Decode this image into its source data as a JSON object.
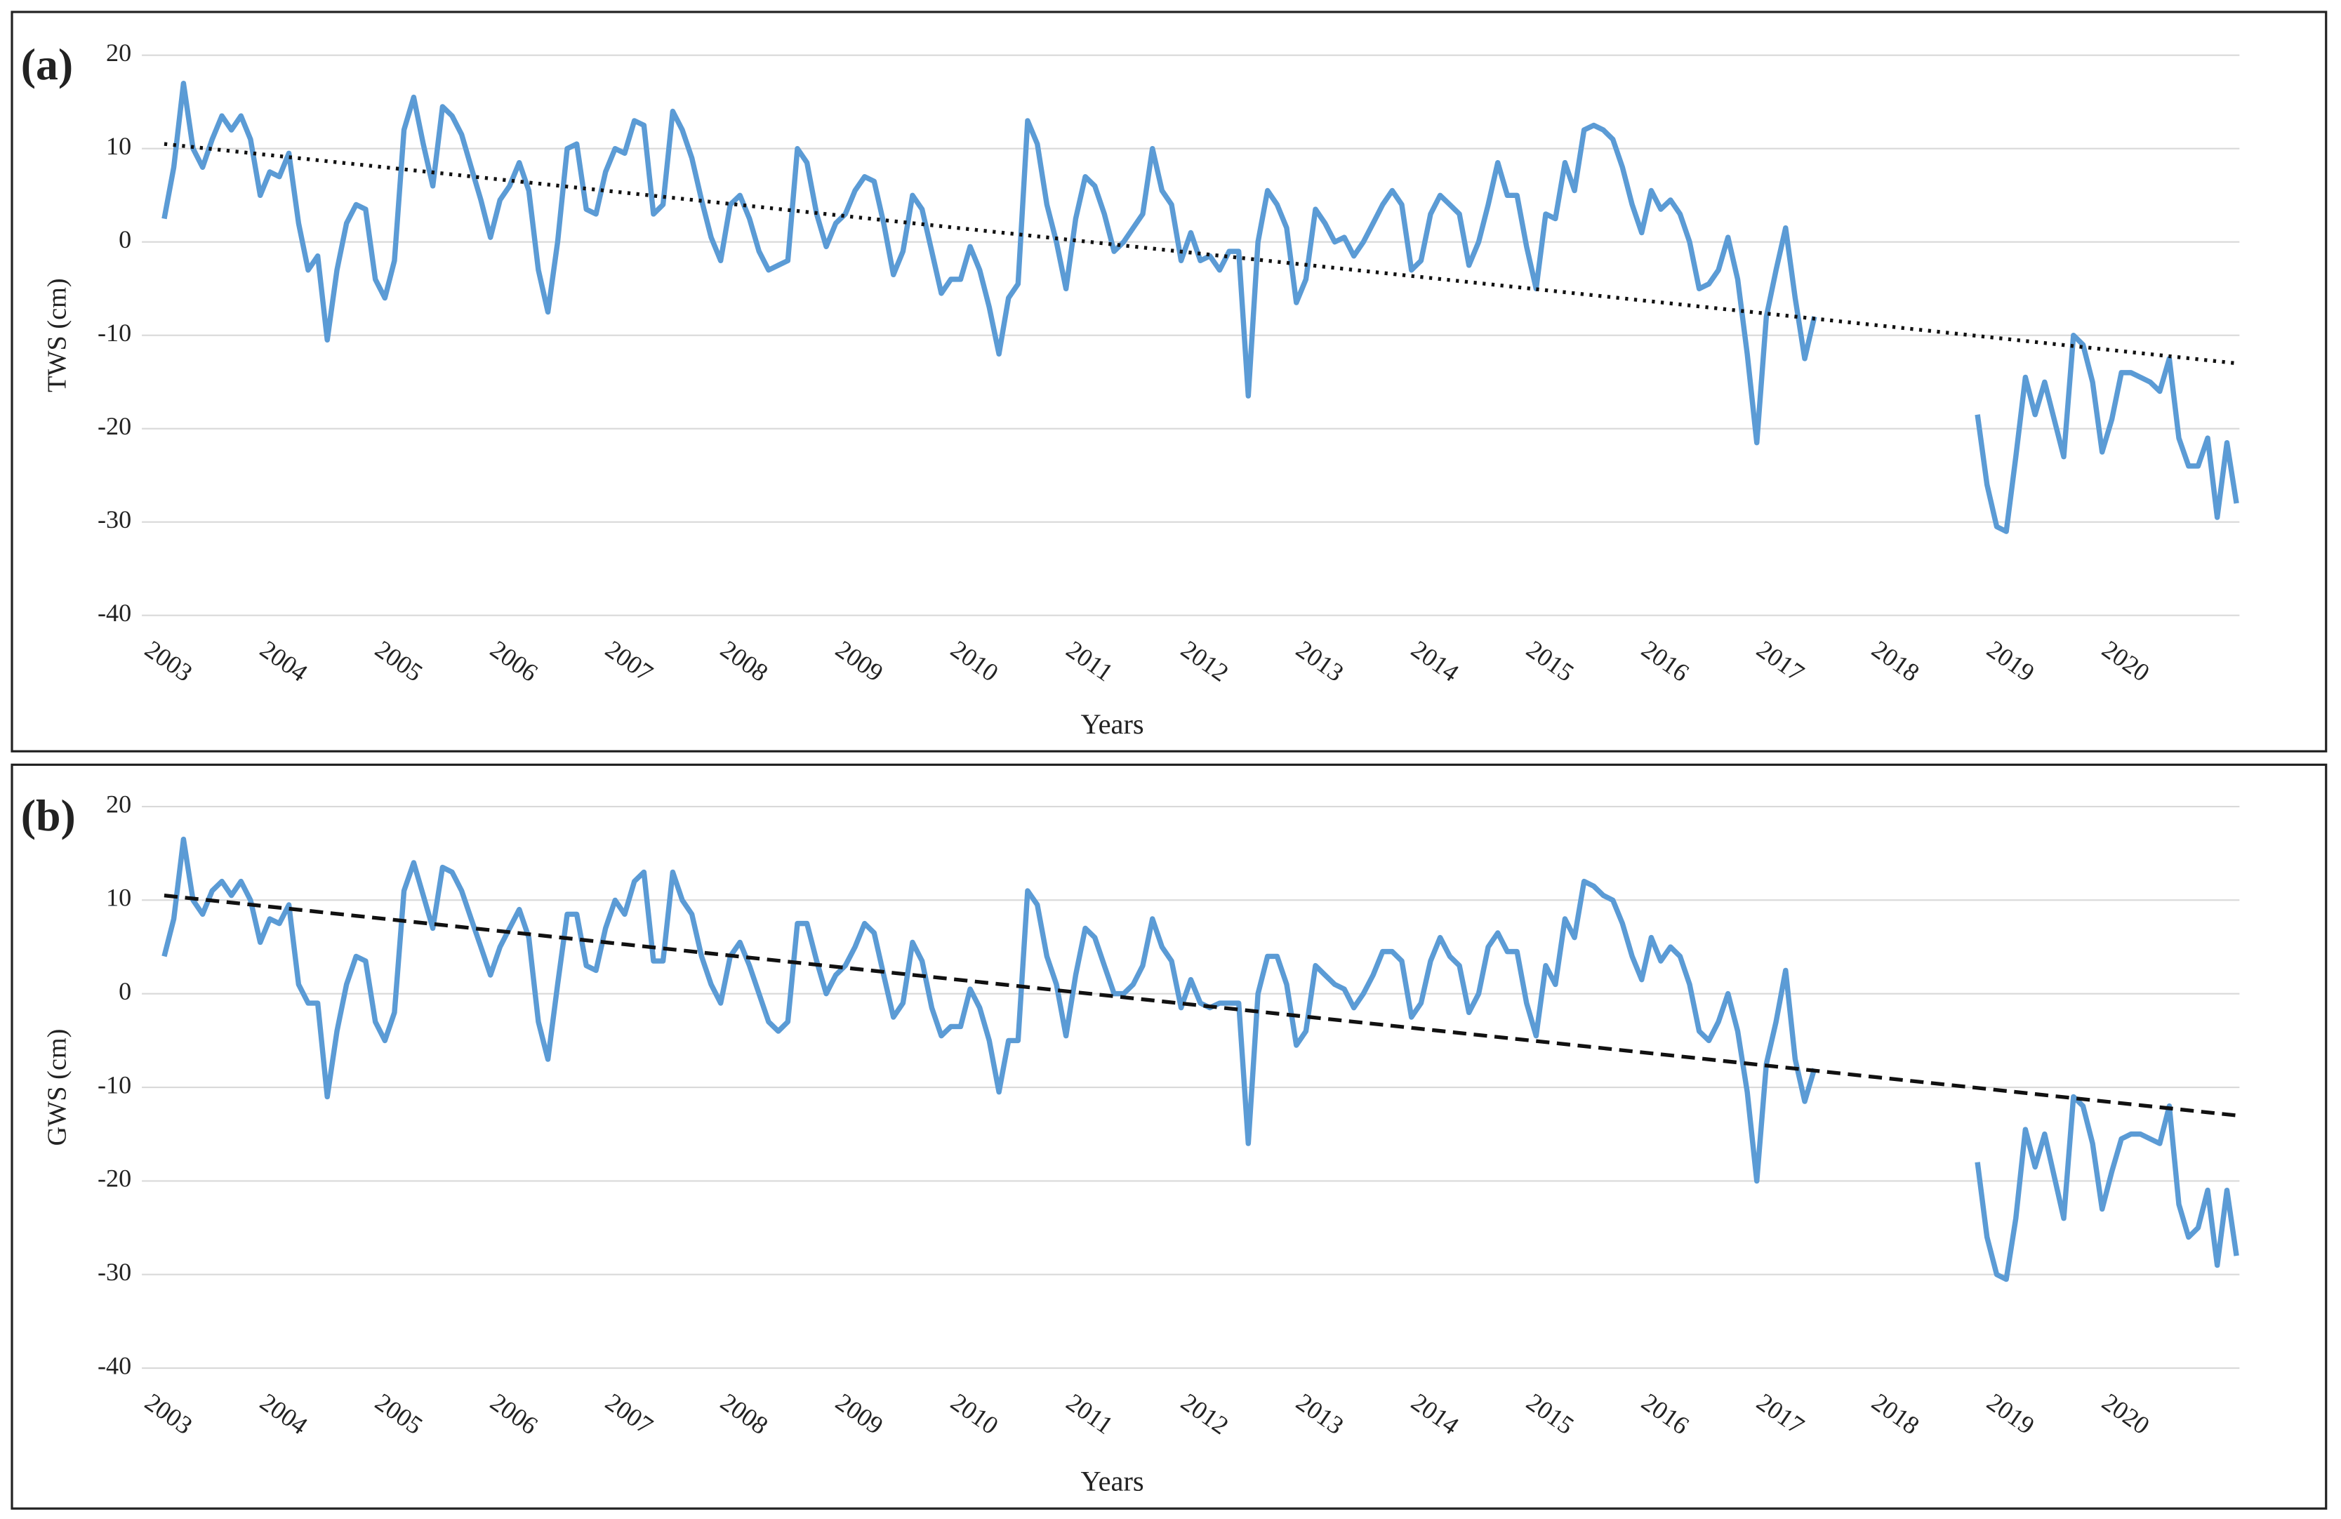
{
  "chart_data": [
    {
      "type": "line",
      "label": "(a)",
      "ylabel": "TWS (cm)",
      "xlabel": "Years",
      "color": "#5b9bd5",
      "grid": true,
      "ylim": [
        -40,
        20
      ],
      "yticks": [
        -40,
        -30,
        -20,
        -10,
        0,
        10,
        20
      ],
      "trend": {
        "start": 10.5,
        "end": -13,
        "style": "dotted"
      },
      "categories": [
        "2003",
        null,
        null,
        null,
        null,
        null,
        null,
        null,
        null,
        null,
        null,
        null,
        "2004",
        null,
        null,
        null,
        null,
        null,
        null,
        null,
        null,
        null,
        null,
        null,
        "2005",
        null,
        null,
        null,
        null,
        null,
        null,
        null,
        null,
        null,
        null,
        null,
        "2006",
        null,
        null,
        null,
        null,
        null,
        null,
        null,
        null,
        null,
        null,
        null,
        "2007",
        null,
        null,
        null,
        null,
        null,
        null,
        null,
        null,
        null,
        null,
        null,
        "2008",
        null,
        null,
        null,
        null,
        null,
        null,
        null,
        null,
        null,
        null,
        null,
        "2009",
        null,
        null,
        null,
        null,
        null,
        null,
        null,
        null,
        null,
        null,
        null,
        "2010",
        null,
        null,
        null,
        null,
        null,
        null,
        null,
        null,
        null,
        null,
        null,
        "2011",
        null,
        null,
        null,
        null,
        null,
        null,
        null,
        null,
        null,
        null,
        null,
        "2012",
        null,
        null,
        null,
        null,
        null,
        null,
        null,
        null,
        null,
        null,
        null,
        "2013",
        null,
        null,
        null,
        null,
        null,
        null,
        null,
        null,
        null,
        null,
        null,
        "2014",
        null,
        null,
        null,
        null,
        null,
        null,
        null,
        null,
        null,
        null,
        null,
        "2015",
        null,
        null,
        null,
        null,
        null,
        null,
        null,
        null,
        null,
        null,
        null,
        "2016",
        null,
        null,
        null,
        null,
        null,
        null,
        null,
        null,
        null,
        null,
        null,
        "2017",
        null,
        null,
        null,
        null,
        null,
        null,
        null,
        null,
        null,
        null,
        null,
        "2018",
        null,
        null,
        null,
        null,
        null,
        null,
        null,
        null,
        null,
        null,
        null,
        "2019",
        null,
        null,
        null,
        null,
        null,
        null,
        null,
        null,
        null,
        null,
        null,
        "2020",
        null,
        null,
        null,
        null,
        null,
        null,
        null,
        null,
        null,
        null,
        null,
        null
      ],
      "values": [
        2.5,
        8,
        17,
        10,
        8,
        11,
        13.5,
        12,
        13.5,
        11,
        5,
        7.5,
        7,
        9.5,
        2,
        -3,
        -1.5,
        -10.5,
        -3,
        2,
        4,
        3.5,
        -4,
        -6,
        -2,
        12,
        15.5,
        10.5,
        6,
        14.5,
        13.5,
        11.5,
        8,
        4.5,
        0.5,
        4.5,
        6,
        8.5,
        5.5,
        -3,
        -7.5,
        0,
        10,
        10.5,
        3.5,
        3,
        7.5,
        10,
        9.5,
        13,
        12.5,
        3,
        4,
        14,
        12,
        9,
        4.5,
        0.5,
        -2,
        4,
        5,
        2.5,
        -1,
        -3,
        -2.5,
        -2,
        10,
        8.5,
        3,
        -0.5,
        2,
        3,
        5.5,
        7,
        6.5,
        2,
        -3.5,
        -1,
        5,
        3.5,
        -1,
        -5.5,
        -4,
        -4,
        -0.5,
        -3,
        -7,
        -12,
        -6,
        -4.5,
        13,
        10.5,
        4,
        0,
        -5,
        2.5,
        7,
        6,
        3,
        -1,
        0,
        1.5,
        3,
        10,
        5.5,
        4,
        -2,
        1,
        -2,
        -1.5,
        -3,
        -1,
        -1,
        -16.5,
        0,
        5.5,
        4,
        1.5,
        -6.5,
        -4,
        3.5,
        2,
        0,
        0.5,
        -1.5,
        0,
        2,
        4,
        5.5,
        4,
        -3,
        -2,
        3,
        5,
        4,
        3,
        -2.5,
        0,
        4,
        8.5,
        5,
        5,
        -0.5,
        -5,
        3,
        2.5,
        8.5,
        5.5,
        12,
        12.5,
        12,
        11,
        8,
        4,
        1,
        5.5,
        3.5,
        4.5,
        3,
        0,
        -5,
        -4.5,
        -3,
        0.5,
        -4,
        -12,
        -21.5,
        -8,
        -3,
        1.5,
        -6,
        -12.5,
        -8,
        null,
        null,
        null,
        null,
        null,
        null,
        null,
        null,
        null,
        null,
        null,
        null,
        null,
        null,
        null,
        null,
        -18.5,
        -26,
        -30.5,
        -31,
        -23,
        -14.5,
        -18.5,
        -15,
        -19,
        -23,
        -10,
        -11,
        -15,
        -22.5,
        -19,
        -14,
        -14,
        -14.5,
        -15,
        -16,
        -12.5,
        -21,
        -24,
        -24,
        -21,
        -29.5,
        -21.5,
        -28
      ]
    },
    {
      "type": "line",
      "label": "(b)",
      "ylabel": "GWS (cm)",
      "xlabel": "Years",
      "color": "#5b9bd5",
      "grid": true,
      "ylim": [
        -40,
        20
      ],
      "yticks": [
        -40,
        -30,
        -20,
        -10,
        0,
        10,
        20
      ],
      "trend": {
        "start": 10.5,
        "end": -13,
        "style": "dashed"
      },
      "categories": [
        "2003",
        null,
        null,
        null,
        null,
        null,
        null,
        null,
        null,
        null,
        null,
        null,
        "2004",
        null,
        null,
        null,
        null,
        null,
        null,
        null,
        null,
        null,
        null,
        null,
        "2005",
        null,
        null,
        null,
        null,
        null,
        null,
        null,
        null,
        null,
        null,
        null,
        "2006",
        null,
        null,
        null,
        null,
        null,
        null,
        null,
        null,
        null,
        null,
        null,
        "2007",
        null,
        null,
        null,
        null,
        null,
        null,
        null,
        null,
        null,
        null,
        null,
        "2008",
        null,
        null,
        null,
        null,
        null,
        null,
        null,
        null,
        null,
        null,
        null,
        "2009",
        null,
        null,
        null,
        null,
        null,
        null,
        null,
        null,
        null,
        null,
        null,
        "2010",
        null,
        null,
        null,
        null,
        null,
        null,
        null,
        null,
        null,
        null,
        null,
        "2011",
        null,
        null,
        null,
        null,
        null,
        null,
        null,
        null,
        null,
        null,
        null,
        "2012",
        null,
        null,
        null,
        null,
        null,
        null,
        null,
        null,
        null,
        null,
        null,
        "2013",
        null,
        null,
        null,
        null,
        null,
        null,
        null,
        null,
        null,
        null,
        null,
        "2014",
        null,
        null,
        null,
        null,
        null,
        null,
        null,
        null,
        null,
        null,
        null,
        "2015",
        null,
        null,
        null,
        null,
        null,
        null,
        null,
        null,
        null,
        null,
        null,
        "2016",
        null,
        null,
        null,
        null,
        null,
        null,
        null,
        null,
        null,
        null,
        null,
        "2017",
        null,
        null,
        null,
        null,
        null,
        null,
        null,
        null,
        null,
        null,
        null,
        "2018",
        null,
        null,
        null,
        null,
        null,
        null,
        null,
        null,
        null,
        null,
        null,
        "2019",
        null,
        null,
        null,
        null,
        null,
        null,
        null,
        null,
        null,
        null,
        null,
        "2020",
        null,
        null,
        null,
        null,
        null,
        null,
        null,
        null,
        null,
        null,
        null,
        null
      ],
      "values": [
        4,
        8,
        16.5,
        10,
        8.5,
        11,
        12,
        10.5,
        12,
        10,
        5.5,
        8,
        7.5,
        9.5,
        1,
        -1,
        -1,
        -11,
        -4,
        1,
        4,
        3.5,
        -3,
        -5,
        -2,
        11,
        14,
        10.5,
        7,
        13.5,
        13,
        11,
        8,
        5,
        2,
        5,
        7,
        9,
        6,
        -3,
        -7,
        1,
        8.5,
        8.5,
        3,
        2.5,
        7,
        10,
        8.5,
        12,
        13,
        3.5,
        3.5,
        13,
        10,
        8.5,
        4,
        1,
        -1,
        4,
        5.5,
        3,
        0,
        -3,
        -4,
        -3,
        7.5,
        7.5,
        3.5,
        0,
        2,
        3,
        5,
        7.5,
        6.5,
        2,
        -2.5,
        -1,
        5.5,
        3.5,
        -1.5,
        -4.5,
        -3.5,
        -3.5,
        0.5,
        -1.5,
        -5,
        -10.5,
        -5,
        -5,
        11,
        9.5,
        4,
        1,
        -4.5,
        2,
        7,
        6,
        3,
        0,
        0,
        1,
        3,
        8,
        5,
        3.5,
        -1.5,
        1.5,
        -1,
        -1.5,
        -1,
        -1,
        -1,
        -16,
        0,
        4,
        4,
        1,
        -5.5,
        -4,
        3,
        2,
        1,
        0.5,
        -1.5,
        0,
        2,
        4.5,
        4.5,
        3.5,
        -2.5,
        -1,
        3.5,
        6,
        4,
        3,
        -2,
        0,
        5,
        6.5,
        4.5,
        4.5,
        -1,
        -4.5,
        3,
        1,
        8,
        6,
        12,
        11.5,
        10.5,
        10,
        7.5,
        4,
        1.5,
        6,
        3.5,
        5,
        4,
        1,
        -4,
        -5,
        -3,
        0,
        -4,
        -10.5,
        -20,
        -7.5,
        -3,
        2.5,
        -7,
        -11.5,
        -8,
        null,
        null,
        null,
        null,
        null,
        null,
        null,
        null,
        null,
        null,
        null,
        null,
        null,
        null,
        null,
        null,
        -18,
        -26,
        -30,
        -30.5,
        -24,
        -14.5,
        -18.5,
        -15,
        -19.5,
        -24,
        -11,
        -12,
        -16,
        -23,
        -19,
        -15.5,
        -15,
        -15,
        -15.5,
        -16,
        -12,
        -22.5,
        -26,
        -25,
        -21,
        -29,
        -21,
        -28
      ]
    }
  ]
}
